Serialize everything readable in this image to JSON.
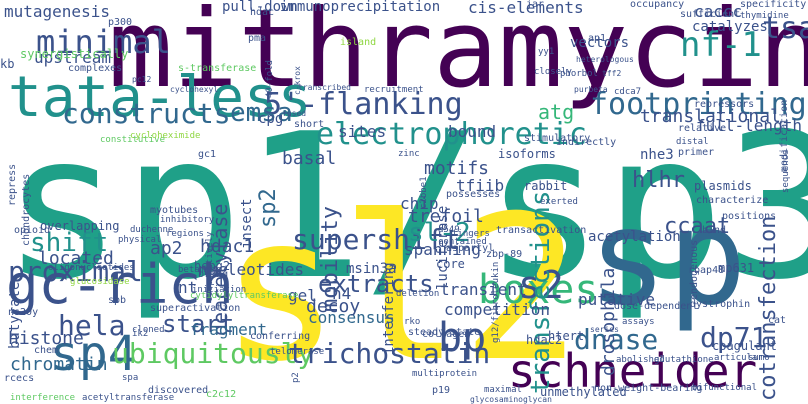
{
  "palette": {
    "dark_purple": "#440154",
    "indigo": "#3b528b",
    "blue": "#31688e",
    "teal": "#21918c",
    "green_teal": "#1fa088",
    "green": "#35b779",
    "lime": "#5ec962",
    "light_green": "#90d743",
    "yellow": "#fde725"
  },
  "words": [
    {
      "text": "sp1/sp3",
      "color": "#1fa088",
      "vertical": false
    },
    {
      "text": "sl2",
      "color": "#fde725",
      "vertical": false
    },
    {
      "text": "mithramycin",
      "color": "#440154",
      "vertical": false
    },
    {
      "text": "sp",
      "color": "#31688e",
      "vertical": false
    },
    {
      "text": "tata-less",
      "color": "#21918c",
      "vertical": false
    },
    {
      "text": "gc-rich",
      "color": "#3b528b",
      "vertical": false
    },
    {
      "text": "schneider",
      "color": "#440154",
      "vertical": false
    },
    {
      "text": "sp4",
      "color": "#31688e",
      "vertical": false
    },
    {
      "text": "electrophoretic",
      "color": "#21918c",
      "vertical": false
    },
    {
      "text": "5'-flanking",
      "color": "#3b528b",
      "vertical": false
    },
    {
      "text": "footprinting",
      "color": "#31688e",
      "vertical": false
    },
    {
      "text": "supershift",
      "color": "#3b528b",
      "vertical": false
    },
    {
      "text": "boxes",
      "color": "#35b779",
      "vertical": false
    },
    {
      "text": "ubiquitously",
      "color": "#5ec962",
      "vertical": false
    },
    {
      "text": "trichostatin",
      "color": "#3b528b",
      "vertical": false
    },
    {
      "text": "minimal",
      "color": "#3b528b",
      "vertical": false
    },
    {
      "text": "constructs",
      "color": "#31688e",
      "vertical": false
    },
    {
      "text": "emsa",
      "color": "#31688e",
      "vertical": false
    },
    {
      "text": "proximal",
      "color": "#3b528b",
      "vertical": false
    },
    {
      "text": "shift",
      "color": "#21918c",
      "vertical": false
    },
    {
      "text": "nf-1",
      "color": "#21918c",
      "vertical": false
    },
    {
      "text": "tsa",
      "color": "#3b528b",
      "vertical": false
    },
    {
      "text": "bp",
      "color": "#3b528b",
      "vertical": false
    },
    {
      "text": "s2",
      "color": "#3b528b",
      "vertical": false
    },
    {
      "text": "dnase",
      "color": "#31688e",
      "vertical": false
    },
    {
      "text": "dp71",
      "color": "#3b528b",
      "vertical": false
    },
    {
      "text": "hela",
      "color": "#3b528b",
      "vertical": false
    },
    {
      "text": "start",
      "color": "#3b528b",
      "vertical": false
    },
    {
      "text": "extracts",
      "color": "#3b528b",
      "vertical": false
    },
    {
      "text": "mobility",
      "color": "#3b528b",
      "vertical": true
    },
    {
      "text": "transfections",
      "color": "#21918c",
      "vertical": true
    },
    {
      "text": "cotransfection",
      "color": "#3b528b",
      "vertical": true
    },
    {
      "text": "sl-2",
      "color": "#21918c",
      "vertical": false
    },
    {
      "text": "sp2",
      "color": "#31688e",
      "vertical": true
    },
    {
      "text": "deacetylase",
      "color": "#3b528b",
      "vertical": true
    },
    {
      "text": "hlhr",
      "color": "#3b528b",
      "vertical": false
    },
    {
      "text": "ccaat",
      "color": "#3b528b",
      "vertical": false
    },
    {
      "text": "translational",
      "color": "#3b528b",
      "vertical": false
    },
    {
      "text": "full-length",
      "color": "#3b528b",
      "vertical": false
    },
    {
      "text": "atg",
      "color": "#35b779",
      "vertical": false
    },
    {
      "text": "basal",
      "color": "#3b528b",
      "vertical": false
    },
    {
      "text": "motifs",
      "color": "#3b528b",
      "vertical": false
    },
    {
      "text": "bound",
      "color": "#3b528b",
      "vertical": false
    },
    {
      "text": "sites",
      "color": "#3b528b",
      "vertical": false
    },
    {
      "text": "cpg",
      "color": "#3b528b",
      "vertical": false
    },
    {
      "text": "nucleotides",
      "color": "#3b528b",
      "vertical": false
    },
    {
      "text": "msin3a",
      "color": "#3b528b",
      "vertical": false
    },
    {
      "text": "ap2",
      "color": "#3b528b",
      "vertical": false
    },
    {
      "text": "hdac1",
      "color": "#3b528b",
      "vertical": false
    },
    {
      "text": "located",
      "color": "#3b528b",
      "vertical": false
    },
    {
      "text": "consensus",
      "color": "#31688e",
      "vertical": false
    },
    {
      "text": "fragment",
      "color": "#31688e",
      "vertical": false
    },
    {
      "text": "histone",
      "color": "#3b528b",
      "vertical": false
    },
    {
      "text": "chromatin",
      "color": "#31688e",
      "vertical": false
    },
    {
      "text": "decoy",
      "color": "#3b528b",
      "vertical": false
    },
    {
      "text": "gel",
      "color": "#3b528b",
      "vertical": false
    },
    {
      "text": "h4",
      "color": "#3b528b",
      "vertical": false
    },
    {
      "text": "nt",
      "color": "#3b528b",
      "vertical": false
    },
    {
      "text": "competition",
      "color": "#3b528b",
      "vertical": false
    },
    {
      "text": "transient",
      "color": "#3b528b",
      "vertical": false
    },
    {
      "text": "putative",
      "color": "#3b528b",
      "vertical": false
    },
    {
      "text": "drosophila",
      "color": "#3b528b",
      "vertical": true
    },
    {
      "text": "trefoil",
      "color": "#3b528b",
      "vertical": false
    },
    {
      "text": "spanning",
      "color": "#3b528b",
      "vertical": false
    },
    {
      "text": "chip",
      "color": "#3b528b",
      "vertical": false
    },
    {
      "text": "tfiib",
      "color": "#3b528b",
      "vertical": false
    },
    {
      "text": "upstream",
      "color": "#3b528b",
      "vertical": false
    },
    {
      "text": "mutagenesis",
      "color": "#3b528b",
      "vertical": false
    },
    {
      "text": "pull-down",
      "color": "#3b528b",
      "vertical": false
    },
    {
      "text": "immunoprecipitation",
      "color": "#3b528b",
      "vertical": false
    },
    {
      "text": "cis-elements",
      "color": "#3b528b",
      "vertical": false
    },
    {
      "text": "caccc",
      "color": "#3b528b",
      "vertical": false
    },
    {
      "text": "catalyzes",
      "color": "#3b528b",
      "vertical": false
    },
    {
      "text": "vectors",
      "color": "#3b528b",
      "vertical": false
    },
    {
      "text": "nhe3",
      "color": "#3b528b",
      "vertical": false
    },
    {
      "text": "luciferase",
      "color": "#3b528b",
      "vertical": true
    },
    {
      "text": "insect",
      "color": "#3b528b",
      "vertical": true
    },
    {
      "text": "isoforms",
      "color": "#3b528b",
      "vertical": false
    },
    {
      "text": "hepg2",
      "color": "#3b528b",
      "vertical": false
    },
    {
      "text": "interfering",
      "color": "#3b528b",
      "vertical": true
    },
    {
      "text": "acetylation",
      "color": "#3b528b",
      "vertical": false
    },
    {
      "text": "butyrate",
      "color": "#3b528b",
      "vertical": true
    },
    {
      "text": "htert",
      "color": "#3b528b",
      "vertical": false
    },
    {
      "text": "core",
      "color": "#3b528b",
      "vertical": false
    },
    {
      "text": "hdac2",
      "color": "#3b528b",
      "vertical": false
    },
    {
      "text": "overlapping",
      "color": "#3b528b",
      "vertical": false
    },
    {
      "text": "kb",
      "color": "#3b528b",
      "vertical": false
    },
    {
      "text": "synergistically",
      "color": "#5ec962",
      "vertical": false
    },
    {
      "text": "s-transferase",
      "color": "#5ec962",
      "vertical": false
    },
    {
      "text": "hdac",
      "color": "#3b528b",
      "vertical": false
    },
    {
      "text": "jar",
      "color": "#3b528b",
      "vertical": false
    },
    {
      "text": "occupancy",
      "color": "#3b528b",
      "vertical": false
    },
    {
      "text": "sufficient",
      "color": "#3b528b",
      "vertical": false
    },
    {
      "text": "thymidine",
      "color": "#3b528b",
      "vertical": false
    },
    {
      "text": "specificity",
      "color": "#3b528b",
      "vertical": false
    },
    {
      "text": "modification",
      "color": "#3b528b",
      "vertical": true
    },
    {
      "text": "p300",
      "color": "#3b528b",
      "vertical": false
    },
    {
      "text": "island",
      "color": "#90d743",
      "vertical": false
    },
    {
      "text": "pma",
      "color": "#3b528b",
      "vertical": false
    },
    {
      "text": "40-fold",
      "color": "#3b528b",
      "vertical": true
    },
    {
      "text": "c-krox",
      "color": "#3b528b",
      "vertical": true
    },
    {
      "text": "ap1",
      "color": "#3b528b",
      "vertical": false
    },
    {
      "text": "yy1",
      "color": "#3b528b",
      "vertical": false
    },
    {
      "text": "heterologous",
      "color": "#3b528b",
      "vertical": false
    },
    {
      "text": "complexes",
      "color": "#3b528b",
      "vertical": false
    },
    {
      "text": "pc12",
      "color": "#3b528b",
      "vertical": false
    },
    {
      "text": "closely",
      "color": "#3b528b",
      "vertical": false
    },
    {
      "text": "phorbol",
      "color": "#3b528b",
      "vertical": false
    },
    {
      "text": "tff2",
      "color": "#3b528b",
      "vertical": false
    },
    {
      "text": "transcribed",
      "color": "#3b528b",
      "vertical": false
    },
    {
      "text": "recruitment",
      "color": "#3b528b",
      "vertical": false
    },
    {
      "text": "purbeta",
      "color": "#3b528b",
      "vertical": false
    },
    {
      "text": "cdca7",
      "color": "#3b528b",
      "vertical": false
    },
    {
      "text": "repressors",
      "color": "#3b528b",
      "vertical": false
    },
    {
      "text": "sequence",
      "color": "#3b528b",
      "vertical": true
    },
    {
      "text": "fused",
      "color": "#3b528b",
      "vertical": false
    },
    {
      "text": "short",
      "color": "#3b528b",
      "vertical": false
    },
    {
      "text": "stimulatory",
      "color": "#3b528b",
      "vertical": false
    },
    {
      "text": "indirectly",
      "color": "#3b528b",
      "vertical": false
    },
    {
      "text": "cyclohexyl",
      "color": "#3b528b",
      "vertical": false
    },
    {
      "text": "constitutive",
      "color": "#5ec962",
      "vertical": false
    },
    {
      "text": "cycloheximide",
      "color": "#90d743",
      "vertical": false
    },
    {
      "text": "repress",
      "color": "#3b528b",
      "vertical": true
    },
    {
      "text": "chondrocytes",
      "color": "#3b528b",
      "vertical": true
    },
    {
      "text": "opioid",
      "color": "#3b528b",
      "vertical": false
    },
    {
      "text": "myotubes",
      "color": "#3b528b",
      "vertical": false
    },
    {
      "text": "inhibitory",
      "color": "#3b528b",
      "vertical": false
    },
    {
      "text": "duchenne",
      "color": "#3b528b",
      "vertical": false
    },
    {
      "text": "regions",
      "color": "#3b528b",
      "vertical": false
    },
    {
      "text": "physical",
      "color": "#3b528b",
      "vertical": false
    },
    {
      "text": "gc1",
      "color": "#3b528b",
      "vertical": false
    },
    {
      "text": "zinc",
      "color": "#3b528b",
      "vertical": false
    },
    {
      "text": "c2bbe1",
      "color": "#3b528b",
      "vertical": true
    },
    {
      "text": "rabbit",
      "color": "#3b528b",
      "vertical": false
    },
    {
      "text": "exerted",
      "color": "#3b528b",
      "vertical": false
    },
    {
      "text": "relative",
      "color": "#3b528b",
      "vertical": false
    },
    {
      "text": "distal",
      "color": "#3b528b",
      "vertical": false
    },
    {
      "text": "primer",
      "color": "#3b528b",
      "vertical": false
    },
    {
      "text": "plasmids",
      "color": "#3b528b",
      "vertical": false
    },
    {
      "text": "characterize",
      "color": "#3b528b",
      "vertical": false
    },
    {
      "text": "positions",
      "color": "#3b528b",
      "vertical": false
    },
    {
      "text": "bind",
      "color": "#3b528b",
      "vertical": false
    },
    {
      "text": "cooperatively",
      "color": "#3b528b",
      "vertical": true
    },
    {
      "text": "possesses",
      "color": "#3b528b",
      "vertical": false
    },
    {
      "text": "a549",
      "color": "#3b528b",
      "vertical": false
    },
    {
      "text": "fingers",
      "color": "#3b528b",
      "vertical": false
    },
    {
      "text": "contained",
      "color": "#3b528b",
      "vertical": false
    },
    {
      "text": "betamyhc",
      "color": "#3b528b",
      "vertical": false
    },
    {
      "text": "bring",
      "color": "#3b528b",
      "vertical": false
    },
    {
      "text": "aspartyl",
      "color": "#3b528b",
      "vertical": false
    },
    {
      "text": "zbp-89",
      "color": "#3b528b",
      "vertical": false
    },
    {
      "text": "g12/fibroleukin",
      "color": "#3b528b",
      "vertical": true
    },
    {
      "text": "endogenous",
      "color": "#3b528b",
      "vertical": true
    },
    {
      "text": "rbap48",
      "color": "#3b528b",
      "vertical": false
    },
    {
      "text": "mp631",
      "color": "#3b528b",
      "vertical": false
    },
    {
      "text": "dystrophin",
      "color": "#3b528b",
      "vertical": false
    },
    {
      "text": "deletion",
      "color": "#3b528b",
      "vertical": false
    },
    {
      "text": "cytidylyltransferase",
      "color": "#5ec962",
      "vertical": false
    },
    {
      "text": "transactivation",
      "color": "#3b528b",
      "vertical": false
    },
    {
      "text": "oligonucleotides",
      "color": "#3b528b",
      "vertical": false
    },
    {
      "text": "glucosidase",
      "color": "#90d743",
      "vertical": false
    },
    {
      "text": "spb",
      "color": "#3b528b",
      "vertical": false
    },
    {
      "text": "initiation",
      "color": "#3b528b",
      "vertical": false
    },
    {
      "text": "rko",
      "color": "#3b528b",
      "vertical": false
    },
    {
      "text": "steady-state",
      "color": "#3b528b",
      "vertical": false
    },
    {
      "text": "dose-dependent",
      "color": "#3b528b",
      "vertical": false
    },
    {
      "text": "assays",
      "color": "#3b528b",
      "vertical": false
    },
    {
      "text": "cat",
      "color": "#3b528b",
      "vertical": false
    },
    {
      "text": "ns20y",
      "color": "#3b528b",
      "vertical": false
    },
    {
      "text": "superactivation",
      "color": "#3b528b",
      "vertical": false
    },
    {
      "text": "cloned",
      "color": "#3b528b",
      "vertical": false
    },
    {
      "text": "ik2",
      "color": "#3b528b",
      "vertical": false
    },
    {
      "text": "collagen",
      "color": "#3b528b",
      "vertical": false
    },
    {
      "text": "coagulant",
      "color": "#3b528b",
      "vertical": false
    },
    {
      "text": "conferring",
      "color": "#3b528b",
      "vertical": false
    },
    {
      "text": "telomerase",
      "color": "#3b528b",
      "vertical": false
    },
    {
      "text": "chem",
      "color": "#3b528b",
      "vertical": false
    },
    {
      "text": "rcecs",
      "color": "#3b528b",
      "vertical": false
    },
    {
      "text": "spa",
      "color": "#3b528b",
      "vertical": false
    },
    {
      "text": "p2",
      "color": "#3b528b",
      "vertical": true
    },
    {
      "text": "multiprotein",
      "color": "#3b528b",
      "vertical": false
    },
    {
      "text": "series",
      "color": "#3b528b",
      "vertical": false
    },
    {
      "text": "abolished",
      "color": "#3b528b",
      "vertical": false
    },
    {
      "text": "articular",
      "color": "#3b528b",
      "vertical": false
    },
    {
      "text": "sumo",
      "color": "#3b528b",
      "vertical": false
    },
    {
      "text": "glutathione",
      "color": "#3b528b",
      "vertical": false
    },
    {
      "text": "discovered",
      "color": "#3b528b",
      "vertical": false
    },
    {
      "text": "c2c12",
      "color": "#5ec962",
      "vertical": false
    },
    {
      "text": "p19",
      "color": "#3b528b",
      "vertical": false
    },
    {
      "text": "maximal",
      "color": "#3b528b",
      "vertical": false
    },
    {
      "text": "glycosaminoglycan",
      "color": "#3b528b",
      "vertical": false
    },
    {
      "text": "unmethylated",
      "color": "#3b528b",
      "vertical": false
    },
    {
      "text": "non-weight-bearing",
      "color": "#3b528b",
      "vertical": false
    },
    {
      "text": "bifunctional",
      "color": "#3b528b",
      "vertical": false
    },
    {
      "text": "interference",
      "color": "#5ec962",
      "vertical": false
    },
    {
      "text": "acetyltransferase",
      "color": "#3b528b",
      "vertical": false
    }
  ]
}
